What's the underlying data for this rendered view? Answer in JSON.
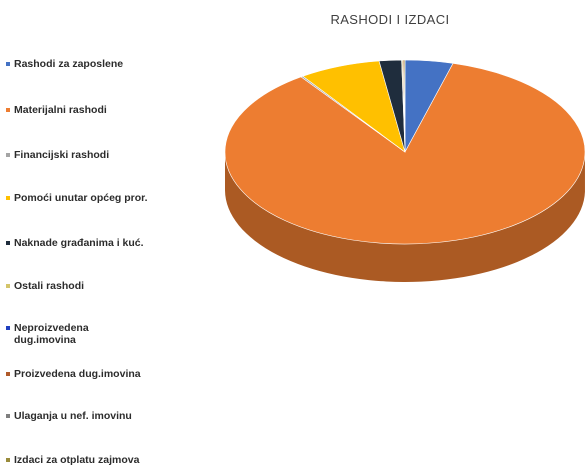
{
  "chart_data": {
    "type": "pie",
    "title": "RASHODI I IZDACI",
    "three_d": true,
    "legend_placement": "left",
    "slices": [
      {
        "name": "Rashodi za zaposlene",
        "value": 4.3,
        "color": "#4472c4"
      },
      {
        "name": "Materijalni rashodi",
        "value": 85.9,
        "color": "#ed7d31"
      },
      {
        "name": "Financijski rashodi",
        "value": 0.2,
        "color": "#a5a5a5"
      },
      {
        "name": "Pomoći unutar općeg pror.",
        "value": 7.3,
        "color": "#ffc000"
      },
      {
        "name": "Naknade građanima i kuć.",
        "value": 2.0,
        "color": "#1f2d3d"
      },
      {
        "name": "Ostali rashodi",
        "value": 0.1,
        "color": "#d4c56a"
      },
      {
        "name": "Neproizvedena dug.imovina",
        "value": 0.0,
        "color": "#1f3fbf"
      },
      {
        "name": "Proizvedena dug.imovina",
        "value": 0.1,
        "color": "#b05a2a"
      },
      {
        "name": "Ulaganja u nef. imovinu",
        "value": 0.0,
        "color": "#7f7f7f"
      },
      {
        "name": "Izdaci za otplatu zajmova",
        "value": 0.1,
        "color": "#998b3b"
      }
    ]
  }
}
